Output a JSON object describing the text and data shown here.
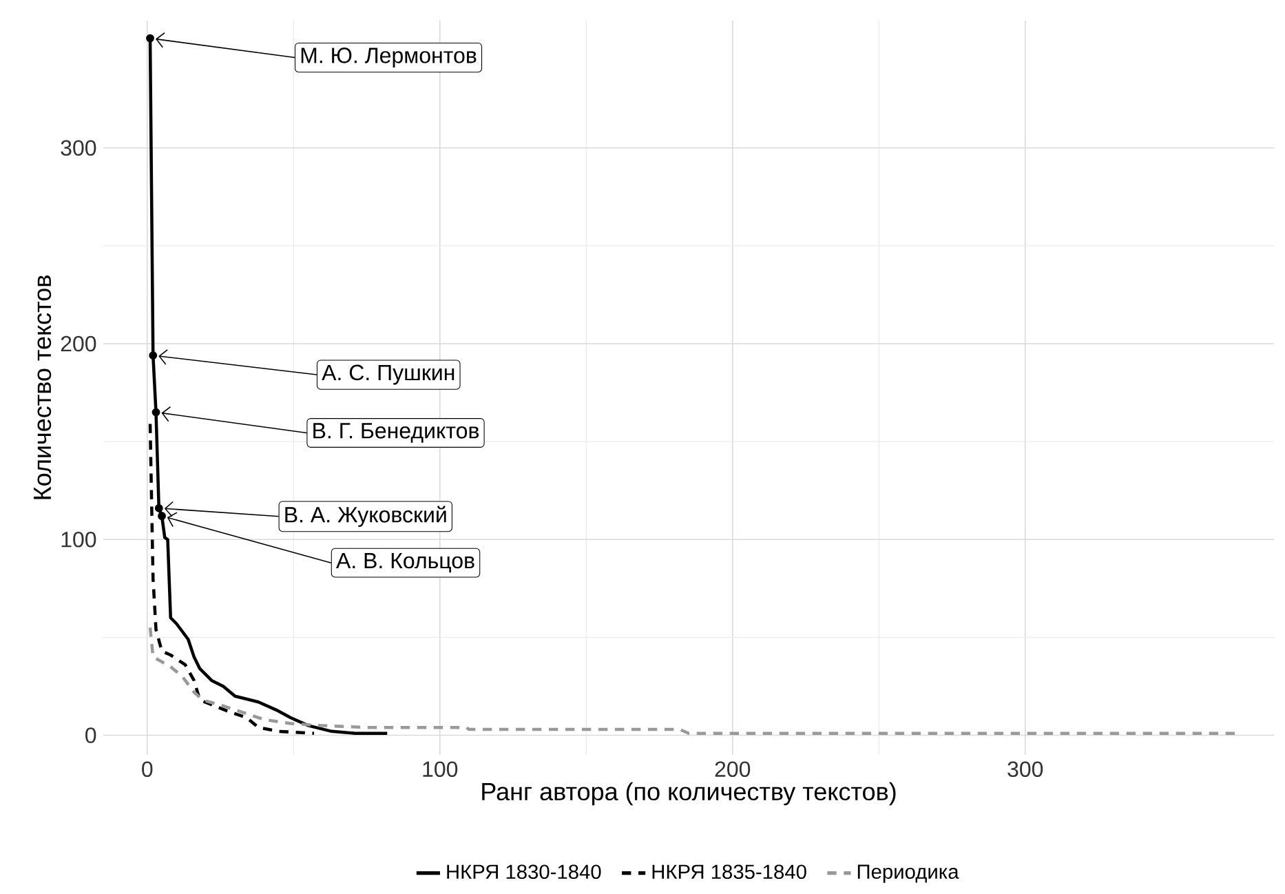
{
  "chart_data": {
    "type": "line",
    "xlabel": "Ранг автора (по количеству текстов)",
    "ylabel": "Количество текстов",
    "xlim": [
      -15,
      385
    ],
    "ylim": [
      -10,
      365
    ],
    "xticks": [
      0,
      100,
      200,
      300
    ],
    "yticks": [
      0,
      100,
      200,
      300
    ],
    "grid": true,
    "legend": "bottom",
    "marker": "none",
    "series": [
      {
        "name": "НКРЯ 1830-1840",
        "color": "#000000",
        "line_style": "solid",
        "x": [
          1,
          2,
          3,
          4,
          5,
          6,
          7,
          8,
          10,
          14,
          16,
          18,
          22,
          26,
          30,
          38,
          44,
          49,
          55,
          63,
          71,
          82
        ],
        "values": [
          356,
          194,
          165,
          116,
          112,
          101,
          100,
          60,
          57,
          49,
          40,
          34,
          28,
          25,
          20,
          17,
          13,
          9,
          5,
          2,
          1,
          1
        ]
      },
      {
        "name": "НКРЯ 1835-1840",
        "color": "#000000",
        "line_style": "dashed",
        "x": [
          1,
          2,
          3,
          5,
          8,
          13,
          16,
          18,
          23,
          28,
          34,
          38,
          45,
          57
        ],
        "values": [
          159,
          80,
          54,
          43,
          41,
          36,
          28,
          18,
          15,
          12,
          9,
          4,
          2,
          1
        ]
      },
      {
        "name": "Периодика",
        "color": "#999999",
        "line_style": "dashed",
        "x": [
          1,
          2,
          8,
          12,
          16,
          19,
          26,
          32,
          40,
          49,
          59,
          75,
          109,
          110,
          182,
          185,
          373
        ],
        "values": [
          55,
          40,
          35,
          30,
          22,
          18,
          15,
          12,
          8,
          6,
          5,
          4,
          4,
          3,
          3,
          1,
          1
        ]
      }
    ],
    "annotations": [
      {
        "text": "М. Ю. Лермонтов",
        "x": 1,
        "y": 356
      },
      {
        "text": "А. С. Пушкин",
        "x": 2,
        "y": 194
      },
      {
        "text": "В. Г. Бенедиктов",
        "x": 3,
        "y": 165
      },
      {
        "text": "В. А. Жуковский",
        "x": 4,
        "y": 116
      },
      {
        "text": "А. В. Кольцов",
        "x": 5,
        "y": 112
      }
    ]
  }
}
